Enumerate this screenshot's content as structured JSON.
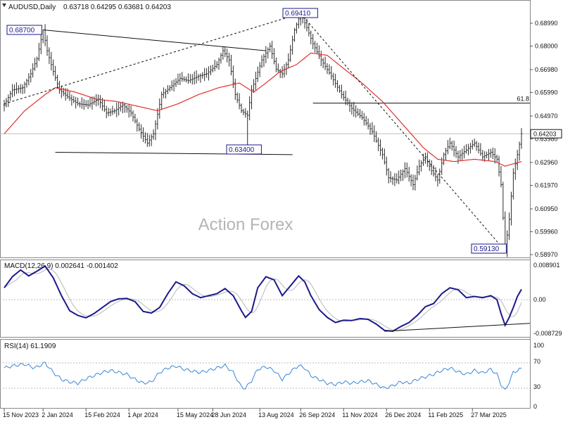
{
  "chart_data": [
    {
      "type": "ohlc",
      "header": {
        "symbol": "AUDUSD,Daily",
        "values": "0.63718 0.64295 0.63681 0.64203"
      },
      "watermark": "Action Forex",
      "y_ticks": [
        "0.68990",
        "0.68000",
        "0.66980",
        "0.65990",
        "0.64970",
        "0.63980",
        "0.62960",
        "0.61970",
        "0.60950",
        "0.59960",
        "0.58970"
      ],
      "last_price": "0.64203",
      "fib_label": "61.8",
      "annotations": [
        {
          "label": "0.68700",
          "price": 0.687
        },
        {
          "label": "0.69410",
          "price": 0.6941
        },
        {
          "label": "0.63400",
          "price": 0.634
        },
        {
          "label": "0.59130",
          "price": 0.5913
        }
      ],
      "price_anchors": [
        [
          0,
          0.6545
        ],
        [
          4,
          0.661
        ],
        [
          9,
          0.662
        ],
        [
          13,
          0.668
        ],
        [
          16,
          0.6745
        ],
        [
          19,
          0.687
        ],
        [
          21,
          0.678
        ],
        [
          24,
          0.669
        ],
        [
          27,
          0.661
        ],
        [
          31,
          0.658
        ],
        [
          36,
          0.655
        ],
        [
          41,
          0.6545
        ],
        [
          46,
          0.657
        ],
        [
          50,
          0.651
        ],
        [
          54,
          0.652
        ],
        [
          58,
          0.6545
        ],
        [
          62,
          0.651
        ],
        [
          66,
          0.644
        ],
        [
          70,
          0.638
        ],
        [
          73,
          0.642
        ],
        [
          77,
          0.659
        ],
        [
          81,
          0.662
        ],
        [
          86,
          0.666
        ],
        [
          90,
          0.665
        ],
        [
          95,
          0.667
        ],
        [
          99,
          0.668
        ],
        [
          104,
          0.672
        ],
        [
          107,
          0.678
        ],
        [
          110,
          0.674
        ],
        [
          113,
          0.659
        ],
        [
          116,
          0.652
        ],
        [
          119,
          0.65
        ],
        [
          121,
          0.661
        ],
        [
          123,
          0.666
        ],
        [
          126,
          0.674
        ],
        [
          130,
          0.68
        ],
        [
          133,
          0.67
        ],
        [
          136,
          0.668
        ],
        [
          139,
          0.674
        ],
        [
          142,
          0.687
        ],
        [
          145,
          0.6941
        ],
        [
          148,
          0.688
        ],
        [
          151,
          0.681
        ],
        [
          155,
          0.674
        ],
        [
          160,
          0.667
        ],
        [
          165,
          0.659
        ],
        [
          170,
          0.653
        ],
        [
          175,
          0.649
        ],
        [
          180,
          0.643
        ],
        [
          185,
          0.633
        ],
        [
          188,
          0.623
        ],
        [
          192,
          0.622
        ],
        [
          196,
          0.627
        ],
        [
          200,
          0.62
        ],
        [
          203,
          0.628
        ],
        [
          206,
          0.632
        ],
        [
          209,
          0.626
        ],
        [
          212,
          0.622
        ],
        [
          215,
          0.633
        ],
        [
          218,
          0.638
        ],
        [
          222,
          0.632
        ],
        [
          226,
          0.635
        ],
        [
          230,
          0.638
        ],
        [
          234,
          0.632
        ],
        [
          238,
          0.634
        ],
        [
          241,
          0.631
        ],
        [
          243,
          0.62
        ],
        [
          245,
          0.5913
        ],
        [
          247,
          0.605
        ],
        [
          249,
          0.625
        ],
        [
          251,
          0.633
        ],
        [
          253,
          0.642
        ]
      ],
      "ma_anchors": [
        [
          0,
          0.642
        ],
        [
          10,
          0.652
        ],
        [
          20,
          0.659
        ],
        [
          25,
          0.662
        ],
        [
          35,
          0.66
        ],
        [
          45,
          0.657
        ],
        [
          55,
          0.656
        ],
        [
          65,
          0.654
        ],
        [
          75,
          0.652
        ],
        [
          85,
          0.655
        ],
        [
          95,
          0.659
        ],
        [
          105,
          0.662
        ],
        [
          115,
          0.664
        ],
        [
          122,
          0.66
        ],
        [
          128,
          0.664
        ],
        [
          135,
          0.669
        ],
        [
          143,
          0.672
        ],
        [
          150,
          0.677
        ],
        [
          158,
          0.676
        ],
        [
          165,
          0.671
        ],
        [
          175,
          0.664
        ],
        [
          185,
          0.656
        ],
        [
          195,
          0.646
        ],
        [
          205,
          0.636
        ],
        [
          212,
          0.631
        ],
        [
          220,
          0.63
        ],
        [
          230,
          0.631
        ],
        [
          240,
          0.63
        ],
        [
          245,
          0.628
        ],
        [
          253,
          0.63
        ]
      ],
      "trendlines": [
        {
          "name": "upper-resistance",
          "p1": [
            19,
            0.687
          ],
          "p2": [
            128,
            0.678
          ],
          "dashed": false
        },
        {
          "name": "lower-support",
          "p1": [
            25,
            0.634
          ],
          "p2": [
            141,
            0.633
          ],
          "dashed": false
        },
        {
          "name": "rise-line",
          "p1": [
            0,
            0.655
          ],
          "p2": [
            145,
            0.6941
          ],
          "dashed": true
        },
        {
          "name": "fall-line",
          "p1": [
            145,
            0.6941
          ],
          "p2": [
            245,
            0.5913
          ],
          "dashed": true
        }
      ],
      "fib_level": {
        "price": 0.6553,
        "from_index": 151
      }
    },
    {
      "type": "line",
      "title": "MACD(12,26,9) 0.002641 -0.001402",
      "y_ticks": [
        "0.008901",
        "0.00",
        "-0.008729"
      ],
      "macd_anchors": [
        [
          0,
          0.003
        ],
        [
          4,
          0.0058
        ],
        [
          8,
          0.0075
        ],
        [
          12,
          0.006
        ],
        [
          16,
          0.0072
        ],
        [
          20,
          0.0085
        ],
        [
          24,
          0.0055
        ],
        [
          28,
          0.001
        ],
        [
          32,
          -0.0028
        ],
        [
          36,
          -0.004
        ],
        [
          40,
          -0.0046
        ],
        [
          44,
          -0.0035
        ],
        [
          48,
          -0.002
        ],
        [
          52,
          -0.0005
        ],
        [
          56,
          0.0002
        ],
        [
          60,
          0.0003
        ],
        [
          64,
          -0.0005
        ],
        [
          68,
          -0.003
        ],
        [
          72,
          -0.0034
        ],
        [
          76,
          -0.002
        ],
        [
          80,
          0.0015
        ],
        [
          84,
          0.0045
        ],
        [
          88,
          0.0035
        ],
        [
          92,
          0.0015
        ],
        [
          96,
          0.0005
        ],
        [
          100,
          0.001
        ],
        [
          104,
          0.0015
        ],
        [
          108,
          0.0028
        ],
        [
          112,
          0.001
        ],
        [
          116,
          -0.0028
        ],
        [
          118,
          -0.0045
        ],
        [
          121,
          -0.003
        ],
        [
          124,
          0.003
        ],
        [
          128,
          0.0058
        ],
        [
          132,
          0.005
        ],
        [
          136,
          0.001
        ],
        [
          140,
          0.0035
        ],
        [
          144,
          0.006
        ],
        [
          147,
          0.0045
        ],
        [
          150,
          0.001
        ],
        [
          154,
          -0.0025
        ],
        [
          158,
          -0.0045
        ],
        [
          162,
          -0.0058
        ],
        [
          166,
          -0.0052
        ],
        [
          170,
          -0.0053
        ],
        [
          174,
          -0.0048
        ],
        [
          178,
          -0.005
        ],
        [
          182,
          -0.0062
        ],
        [
          186,
          -0.0078
        ],
        [
          190,
          -0.008
        ],
        [
          194,
          -0.0068
        ],
        [
          198,
          -0.0058
        ],
        [
          202,
          -0.004
        ],
        [
          206,
          -0.0018
        ],
        [
          210,
          -0.001
        ],
        [
          214,
          0.0015
        ],
        [
          218,
          0.003
        ],
        [
          222,
          0.0025
        ],
        [
          226,
          0.0005
        ],
        [
          230,
          0.0008
        ],
        [
          234,
          0.0005
        ],
        [
          238,
          0.001
        ],
        [
          241,
          0.0
        ],
        [
          243,
          -0.0035
        ],
        [
          245,
          -0.0065
        ],
        [
          247,
          -0.0045
        ],
        [
          249,
          -0.002
        ],
        [
          251,
          0.0008
        ],
        [
          253,
          0.0026
        ]
      ],
      "signal_lag": 3,
      "trendline": {
        "p1": [
          186,
          -0.008
        ],
        "p2": [
          253,
          -0.006
        ]
      }
    },
    {
      "type": "line",
      "title": "RSI(14) 61.1909",
      "y_ticks": [
        "100",
        "70",
        "30",
        "0"
      ],
      "guides": [
        70,
        30
      ],
      "rsi_anchors": [
        [
          0,
          62
        ],
        [
          5,
          66
        ],
        [
          10,
          68
        ],
        [
          15,
          62
        ],
        [
          20,
          70
        ],
        [
          24,
          55
        ],
        [
          28,
          44
        ],
        [
          32,
          40
        ],
        [
          36,
          38
        ],
        [
          40,
          45
        ],
        [
          44,
          50
        ],
        [
          48,
          55
        ],
        [
          52,
          58
        ],
        [
          56,
          55
        ],
        [
          60,
          52
        ],
        [
          64,
          44
        ],
        [
          68,
          38
        ],
        [
          72,
          40
        ],
        [
          76,
          55
        ],
        [
          80,
          62
        ],
        [
          84,
          65
        ],
        [
          88,
          60
        ],
        [
          92,
          57
        ],
        [
          96,
          55
        ],
        [
          100,
          58
        ],
        [
          104,
          62
        ],
        [
          108,
          66
        ],
        [
          112,
          55
        ],
        [
          116,
          32
        ],
        [
          118,
          30
        ],
        [
          121,
          42
        ],
        [
          124,
          60
        ],
        [
          128,
          64
        ],
        [
          132,
          58
        ],
        [
          136,
          44
        ],
        [
          140,
          56
        ],
        [
          144,
          66
        ],
        [
          147,
          62
        ],
        [
          150,
          50
        ],
        [
          154,
          44
        ],
        [
          158,
          38
        ],
        [
          162,
          36
        ],
        [
          166,
          40
        ],
        [
          170,
          38
        ],
        [
          174,
          40
        ],
        [
          178,
          42
        ],
        [
          182,
          36
        ],
        [
          186,
          30
        ],
        [
          190,
          34
        ],
        [
          194,
          40
        ],
        [
          198,
          38
        ],
        [
          202,
          44
        ],
        [
          206,
          48
        ],
        [
          210,
          52
        ],
        [
          214,
          58
        ],
        [
          218,
          62
        ],
        [
          222,
          56
        ],
        [
          226,
          52
        ],
        [
          230,
          58
        ],
        [
          234,
          54
        ],
        [
          238,
          60
        ],
        [
          241,
          52
        ],
        [
          243,
          36
        ],
        [
          245,
          26
        ],
        [
          247,
          40
        ],
        [
          249,
          55
        ],
        [
          251,
          58
        ],
        [
          253,
          61
        ]
      ]
    }
  ],
  "x_axis": {
    "labels": [
      {
        "text": "15 Nov 2023",
        "index": 0
      },
      {
        "text": "2 Jan 2024",
        "index": 19
      },
      {
        "text": "15 Feb 2024",
        "index": 40
      },
      {
        "text": "1 Apr 2024",
        "index": 61
      },
      {
        "text": "15 May 2024",
        "index": 85
      },
      {
        "text": "28 Jun 2024",
        "index": 102
      },
      {
        "text": "13 Aug 2024",
        "index": 125
      },
      {
        "text": "26 Sep 2024",
        "index": 145
      },
      {
        "text": "11 Nov 2024",
        "index": 166
      },
      {
        "text": "26 Dec 2024",
        "index": 187
      },
      {
        "text": "11 Feb 2025",
        "index": 208
      },
      {
        "text": "27 Mar 2025",
        "index": 229
      }
    ]
  },
  "colors": {
    "candle": "#2a2a2a",
    "ma": "#e03030",
    "macd": "#1a1a8c",
    "signal": "#b8b8b8",
    "rsi": "#3a86d8",
    "grid": "#bdbdbd",
    "line": "#111111"
  }
}
